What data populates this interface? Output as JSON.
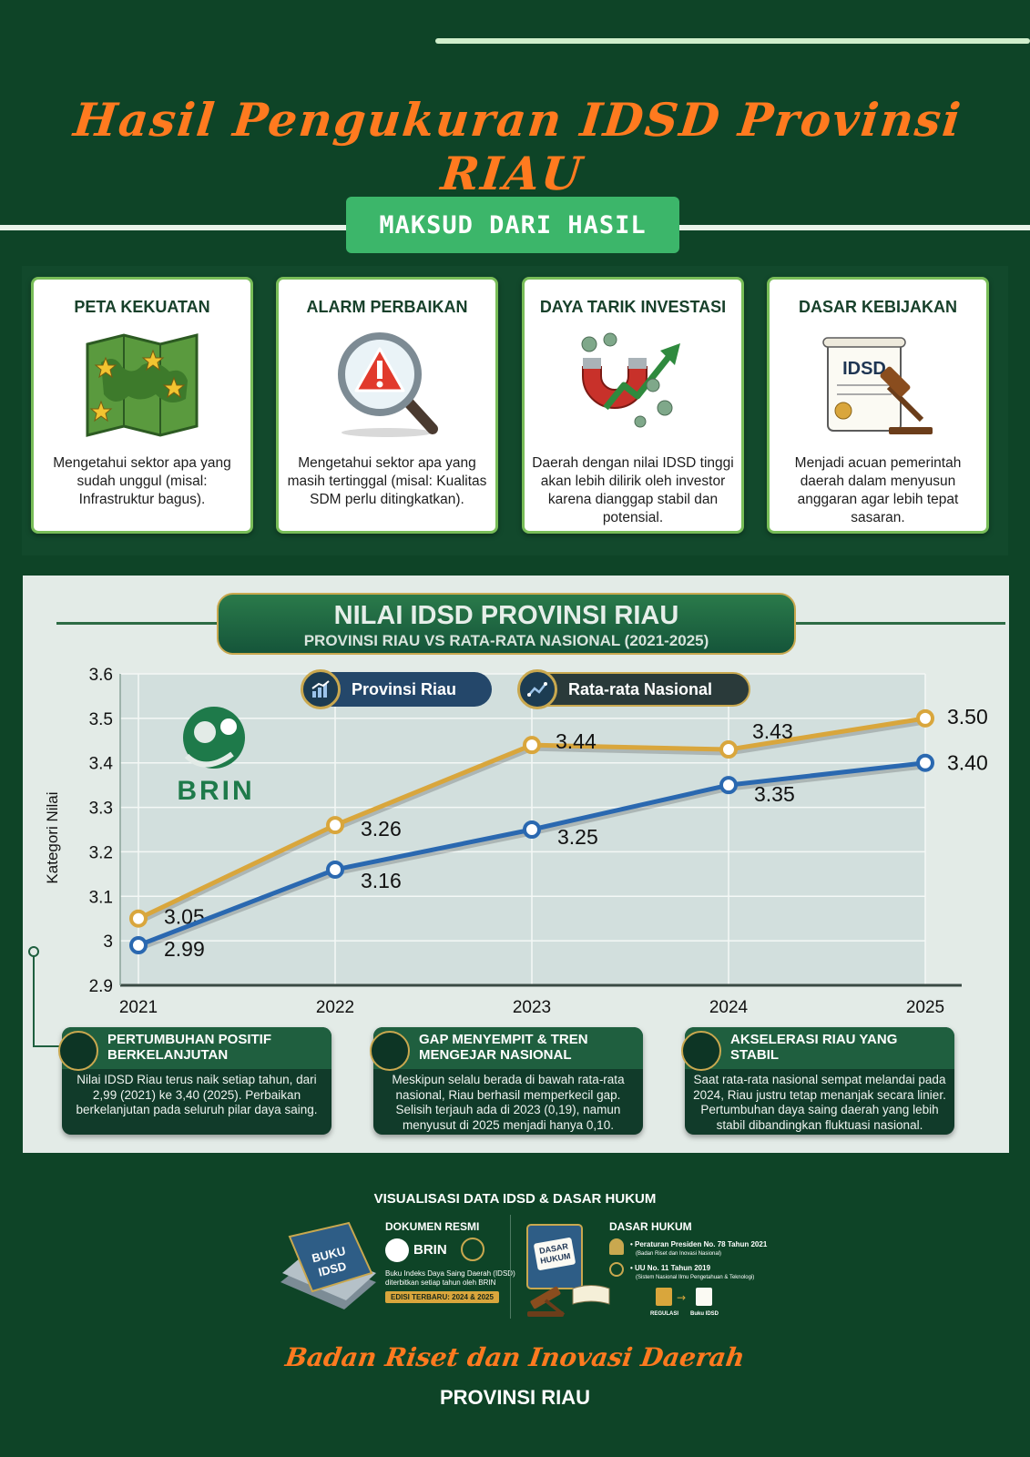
{
  "title": "Hasil Pengukuran IDSD Provinsi RIAU",
  "section_label": "MAKSUD DARI HASIL",
  "cards": [
    {
      "title": "PETA KEKUATAN",
      "icon": "map-icon",
      "text": "Mengetahui sektor apa yang sudah unggul (misal: Infrastruktur bagus)."
    },
    {
      "title": "ALARM PERBAIKAN",
      "icon": "magnifier-alert-icon",
      "text": "Mengetahui sektor apa yang masih tertinggal (misal: Kualitas SDM perlu ditingkatkan)."
    },
    {
      "title": "DAYA TARIK INVESTASI",
      "icon": "magnet-growth-icon",
      "text": "Daerah dengan nilai IDSD tinggi akan lebih dilirik oleh investor karena dianggap stabil dan potensial."
    },
    {
      "title": "DASAR KEBIJAKAN",
      "icon": "document-gavel-icon",
      "text": "Menjadi acuan pemerintah daerah dalam menyusun anggaran agar lebih tepat sasaran."
    }
  ],
  "chart_header": {
    "title": "NILAI IDSD PROVINSI RIAU",
    "subtitle": "PROVINSI RIAU VS RATA-RATA NASIONAL (2021-2025)"
  },
  "brin_label": "BRIN",
  "chart_data": {
    "type": "line",
    "x": [
      "2021",
      "2022",
      "2023",
      "2024",
      "2025"
    ],
    "series": [
      {
        "name": "Provinsi Riau",
        "color": "#2a68b0",
        "values": [
          2.99,
          3.16,
          3.25,
          3.35,
          3.4
        ],
        "labels": [
          "2.99",
          "3.16",
          "3.25",
          "3.35",
          "3.40"
        ]
      },
      {
        "name": "Rata-rata Nasional",
        "color": "#d9a63c",
        "values": [
          3.05,
          3.26,
          3.44,
          3.43,
          3.5
        ],
        "labels": [
          "3.05",
          "3.26",
          "3.44",
          "3.43",
          "3.50"
        ]
      }
    ],
    "ylabel": "Kategori Nilai",
    "yticks": [
      "2.9",
      "3",
      "3.1",
      "3.2",
      "3.3",
      "3.4",
      "3.5",
      "3.6"
    ],
    "ylim": [
      2.9,
      3.6
    ],
    "grid": true,
    "legend": "top"
  },
  "notes": [
    {
      "title": "PERTUMBUHAN POSITIF BERKELANJUTAN",
      "icon": "growth-chart-icon",
      "text": "Nilai IDSD Riau terus naik setiap tahun, dari 2,99 (2021) ke 3,40 (2025). Perbaikan berkelanjutan pada seluruh pilar daya saing."
    },
    {
      "title": "GAP MENYEMPIT & TREN MENGEJAR NASIONAL",
      "icon": "people-gap-icon",
      "text": "Meskipun selalu berada di bawah rata-rata nasional, Riau berhasil memperkecil gap. Selisih terjauh ada di 2023 (0,19), namun menyusut di 2025 menjadi hanya 0,10."
    },
    {
      "title": "AKSELERASI RIAU YANG STABIL",
      "icon": "stability-icon",
      "text": "Saat rata-rata nasional sempat melandai pada 2024, Riau justru tetap menanjak secara linier. Pertumbuhan daya saing daerah yang lebih stabil dibandingkan fluktuasi nasional."
    }
  ],
  "footer": {
    "title": "VISUALISASI DATA IDSD & DASAR HUKUM",
    "doc_title": "DOKUMEN RESMI",
    "book_label": "BUKU IDSD",
    "brin": "BRIN",
    "doc_desc1": "Buku Indeks Daya Saing Daerah (IDSD)",
    "doc_desc2": "diterbitkan setiap tahun oleh BRIN",
    "edition": "EDISI TERBARU: 2024 & 2025",
    "law_title": "DASAR HUKUM",
    "law_book": "DASAR HUKUM",
    "law1": "• Peraturan Presiden No. 78 Tahun 2021",
    "law1_sub": "(Badan Riset dan Inovasi Nasional)",
    "law2": "• UU No. 11 Tahun 2019",
    "law2_sub": "(Sistem Nasional Ilmu Pengetahuan & Teknologi)",
    "regulasi": "REGULASI",
    "buku_idsd": "Buku IDSD",
    "agency": "Badan Riset dan Inovasi Daerah",
    "province": "PROVINSI RIAU"
  }
}
